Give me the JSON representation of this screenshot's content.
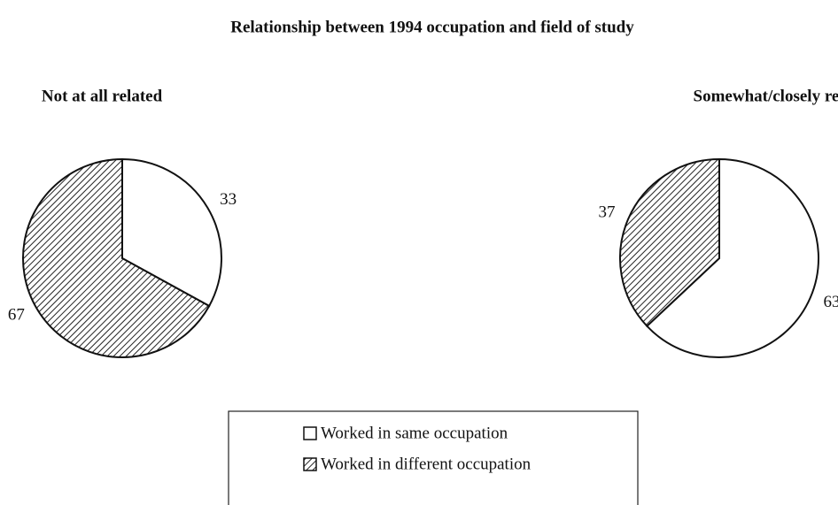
{
  "title": "Relationship between 1994 occupation and field of study",
  "chart_data": [
    {
      "type": "pie",
      "title": "Not at all related",
      "categories": [
        "Worked in same occupation",
        "Worked in different occupation"
      ],
      "values": [
        33,
        67
      ],
      "colors": [
        "#ffffff",
        "hatch"
      ]
    },
    {
      "type": "pie",
      "title": "Somewhat/closely related",
      "categories": [
        "Worked in same occupation",
        "Worked in different occupation"
      ],
      "values": [
        63,
        37
      ],
      "colors": [
        "#ffffff",
        "hatch"
      ]
    }
  ]
}
